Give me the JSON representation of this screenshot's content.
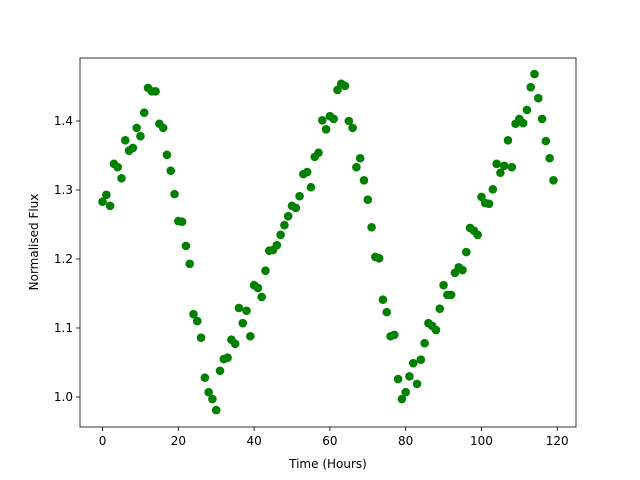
{
  "chart_data": {
    "type": "scatter",
    "x_label": "Time (Hours)",
    "y_label": "Normalised Flux",
    "x": [
      0,
      1,
      2,
      3,
      4,
      5,
      6,
      7,
      8,
      9,
      10,
      11,
      12,
      13,
      14,
      15,
      16,
      17,
      18,
      19,
      20,
      21,
      22,
      23,
      24,
      25,
      26,
      27,
      28,
      29,
      30,
      31,
      32,
      33,
      34,
      35,
      36,
      37,
      38,
      39,
      40,
      41,
      42,
      43,
      44,
      45,
      46,
      47,
      48,
      49,
      50,
      51,
      52,
      53,
      54,
      55,
      56,
      57,
      58,
      59,
      60,
      61,
      62,
      63,
      64,
      65,
      66,
      67,
      68,
      69,
      70,
      71,
      72,
      73,
      74,
      75,
      76,
      77,
      78,
      79,
      80,
      81,
      82,
      83,
      84,
      85,
      86,
      87,
      88,
      89,
      90,
      91,
      92,
      93,
      94,
      95,
      96,
      97,
      98,
      99,
      100,
      101,
      102,
      103,
      104,
      105,
      106,
      107,
      108,
      109,
      110,
      111,
      112,
      113,
      114,
      115,
      116,
      117,
      118,
      119
    ],
    "series": [
      {
        "color": "#008000",
        "values": [
          1.283,
          1.293,
          1.277,
          1.338,
          1.333,
          1.317,
          1.372,
          1.357,
          1.361,
          1.39,
          1.378,
          1.412,
          1.448,
          1.443,
          1.443,
          1.396,
          1.39,
          1.351,
          1.328,
          1.294,
          1.255,
          1.254,
          1.219,
          1.193,
          1.12,
          1.11,
          1.086,
          1.028,
          1.007,
          0.997,
          0.981,
          1.038,
          1.055,
          1.057,
          1.083,
          1.077,
          1.129,
          1.107,
          1.125,
          1.088,
          1.162,
          1.158,
          1.145,
          1.183,
          1.212,
          1.213,
          1.22,
          1.235,
          1.249,
          1.262,
          1.277,
          1.274,
          1.291,
          1.323,
          1.326,
          1.304,
          1.348,
          1.354,
          1.401,
          1.388,
          1.407,
          1.403,
          1.445,
          1.454,
          1.451,
          1.4,
          1.39,
          1.333,
          1.346,
          1.314,
          1.286,
          1.246,
          1.203,
          1.201,
          1.141,
          1.123,
          1.088,
          1.09,
          1.026,
          0.997,
          1.007,
          1.03,
          1.049,
          1.019,
          1.054,
          1.078,
          1.107,
          1.103,
          1.097,
          1.128,
          1.162,
          1.148,
          1.148,
          1.18,
          1.188,
          1.184,
          1.21,
          1.245,
          1.241,
          1.235,
          1.29,
          1.281,
          1.28,
          1.301,
          1.338,
          1.325,
          1.335,
          1.372,
          1.333,
          1.396,
          1.403,
          1.397,
          1.416,
          1.449,
          1.468,
          1.433,
          1.403,
          1.371,
          1.346,
          1.314
        ]
      }
    ],
    "xlim": [
      -5.95,
      124.95
    ],
    "xticks": [
      0,
      20,
      40,
      60,
      80,
      100,
      120
    ],
    "ylim": [
      0.9565,
      1.4913
    ],
    "yticks": [
      {
        "value": 1,
        "label": "1.0"
      },
      1.1,
      1.2,
      1.3,
      1.4
    ],
    "grid": false
  }
}
